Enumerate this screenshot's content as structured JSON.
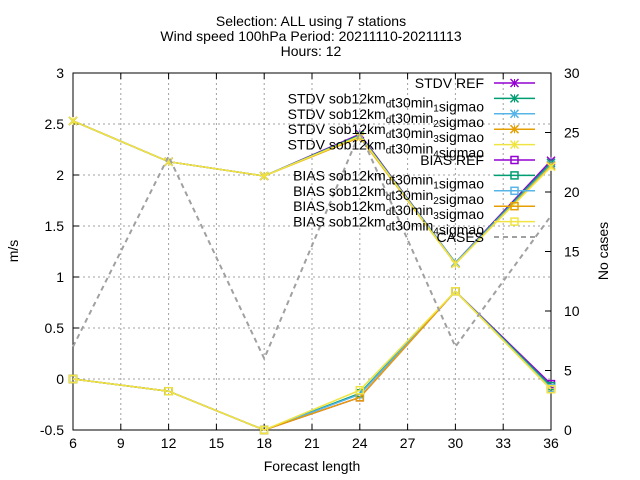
{
  "chart_data": {
    "type": "line",
    "title_lines": [
      "Selection: ALL using     7 stations",
      "Wind speed 100hPa   Period: 20211110-20211113",
      "Hours: 12"
    ],
    "xlabel": "Forecast length",
    "ylabel": "m/s",
    "y2label": "No cases",
    "xlim": [
      6,
      36
    ],
    "ylim": [
      -0.5,
      3
    ],
    "y2lim": [
      0,
      30
    ],
    "xticks": [
      "6",
      "9",
      "12",
      "15",
      "18",
      "21",
      "24",
      "27",
      "30",
      "33",
      "36"
    ],
    "yticks": [
      "-0.5",
      "0",
      "0.5",
      "1",
      "1.5",
      "2",
      "2.5",
      "3"
    ],
    "y2ticks": [
      "0",
      "5",
      "10",
      "15",
      "20",
      "25",
      "30"
    ],
    "grid": true,
    "legend_position": "top-right",
    "x": [
      6,
      12,
      18,
      24,
      30,
      36
    ],
    "series": [
      {
        "label_parts": [
          {
            "t": "STDV REF",
            "s": "n"
          }
        ],
        "axis": "y",
        "values": [
          2.53,
          2.13,
          1.99,
          2.4,
          1.14,
          2.14
        ],
        "color": "#9400d3",
        "marker": "x"
      },
      {
        "label_parts": [
          {
            "t": "STDV sob12km",
            "s": "n"
          },
          {
            "t": "d",
            "s": "sub"
          },
          {
            "t": "t30min",
            "s": "n"
          },
          {
            "t": "1",
            "s": "sub"
          },
          {
            "t": "sigmao",
            "s": "n"
          }
        ],
        "axis": "y",
        "values": [
          2.53,
          2.13,
          1.99,
          2.39,
          1.14,
          2.12
        ],
        "color": "#009e73",
        "marker": "x"
      },
      {
        "label_parts": [
          {
            "t": "STDV sob12km",
            "s": "n"
          },
          {
            "t": "d",
            "s": "sub"
          },
          {
            "t": "t30min",
            "s": "n"
          },
          {
            "t": "2",
            "s": "sub"
          },
          {
            "t": "sigmao",
            "s": "n"
          }
        ],
        "axis": "y",
        "values": [
          2.53,
          2.13,
          1.99,
          2.38,
          1.14,
          2.1
        ],
        "color": "#56b4e9",
        "marker": "x"
      },
      {
        "label_parts": [
          {
            "t": "STDV sob12km",
            "s": "n"
          },
          {
            "t": "d",
            "s": "sub"
          },
          {
            "t": "t30min",
            "s": "n"
          },
          {
            "t": "3",
            "s": "sub"
          },
          {
            "t": "sigmao",
            "s": "n"
          }
        ],
        "axis": "y",
        "values": [
          2.53,
          2.13,
          1.99,
          2.37,
          1.13,
          2.09
        ],
        "color": "#e69f00",
        "marker": "x"
      },
      {
        "label_parts": [
          {
            "t": "STDV sob12km",
            "s": "n"
          },
          {
            "t": "d",
            "s": "sub"
          },
          {
            "t": "t30min",
            "s": "n"
          },
          {
            "t": "4",
            "s": "sub"
          },
          {
            "t": "sigmao",
            "s": "n"
          }
        ],
        "axis": "y",
        "values": [
          2.53,
          2.13,
          1.99,
          2.38,
          1.13,
          2.08
        ],
        "color": "#f0e442",
        "marker": "x"
      },
      {
        "label_parts": [
          {
            "t": "BIAS REF",
            "s": "n"
          }
        ],
        "axis": "y",
        "values": [
          0.0,
          -0.12,
          -0.5,
          -0.18,
          0.86,
          -0.05
        ],
        "color": "#9400d3",
        "marker": "square"
      },
      {
        "label_parts": [
          {
            "t": "BIAS sob12km",
            "s": "n"
          },
          {
            "t": "d",
            "s": "sub"
          },
          {
            "t": "t30min",
            "s": "n"
          },
          {
            "t": "1",
            "s": "sub"
          },
          {
            "t": "sigmao",
            "s": "n"
          }
        ],
        "axis": "y",
        "values": [
          0.0,
          -0.12,
          -0.5,
          -0.14,
          0.86,
          -0.07
        ],
        "color": "#009e73",
        "marker": "square"
      },
      {
        "label_parts": [
          {
            "t": "BIAS sob12km",
            "s": "n"
          },
          {
            "t": "d",
            "s": "sub"
          },
          {
            "t": "t30min",
            "s": "n"
          },
          {
            "t": "2",
            "s": "sub"
          },
          {
            "t": "sigmao",
            "s": "n"
          }
        ],
        "axis": "y",
        "values": [
          0.0,
          -0.12,
          -0.5,
          -0.15,
          0.86,
          -0.09
        ],
        "color": "#56b4e9",
        "marker": "square"
      },
      {
        "label_parts": [
          {
            "t": "BIAS sob12km",
            "s": "n"
          },
          {
            "t": "d",
            "s": "sub"
          },
          {
            "t": "t30min",
            "s": "n"
          },
          {
            "t": "3",
            "s": "sub"
          },
          {
            "t": "sigmao",
            "s": "n"
          }
        ],
        "axis": "y",
        "values": [
          0.0,
          -0.12,
          -0.5,
          -0.18,
          0.86,
          -0.1
        ],
        "color": "#e69f00",
        "marker": "square"
      },
      {
        "label_parts": [
          {
            "t": "BIAS sob12km",
            "s": "n"
          },
          {
            "t": "d",
            "s": "sub"
          },
          {
            "t": "t30min",
            "s": "n"
          },
          {
            "t": "4",
            "s": "sub"
          },
          {
            "t": "sigmao",
            "s": "n"
          }
        ],
        "axis": "y",
        "values": [
          0.0,
          -0.12,
          -0.5,
          -0.11,
          0.86,
          -0.1
        ],
        "color": "#f0e442",
        "marker": "square"
      },
      {
        "label_parts": [
          {
            "t": "CASES",
            "s": "n"
          }
        ],
        "axis": "y2",
        "values": [
          7,
          23,
          6,
          25,
          7,
          18
        ],
        "color": "#a0a0a0",
        "marker": "none",
        "dashed": true
      }
    ]
  }
}
